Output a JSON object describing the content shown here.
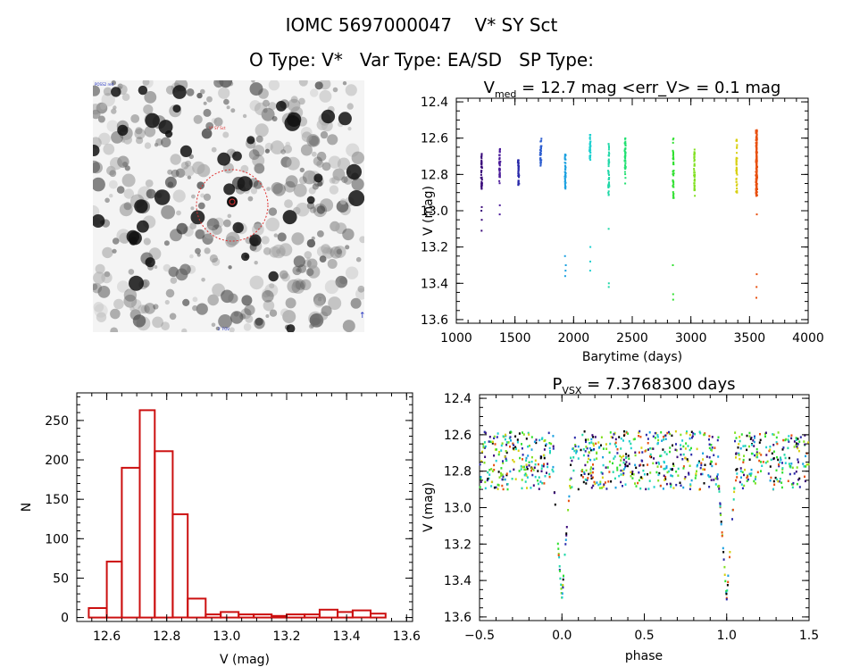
{
  "header": {
    "title": "IOMC 5697000047    V* SY Sct",
    "subtitle": "O Type: V*   Var Type: EA/SD   SP Type:"
  },
  "image_panel": {
    "label_top_left": "POSS2 red",
    "label_marker": "V* SY Sct",
    "label_bottom": "2' FOV",
    "circle_color": "#e03030"
  },
  "chart_data": [
    {
      "id": "light-curve",
      "type": "scatter",
      "title_main": "V",
      "title_sub": "med",
      "title_rest": " = 12.7 mag <err_V> = 0.1 mag",
      "xlabel": "Barytime (days)",
      "ylabel": "V (mag)",
      "xlim": [
        1000,
        4000
      ],
      "ylim": [
        13.62,
        12.38
      ],
      "y_inverted": true,
      "xticks": [
        1000,
        1500,
        2000,
        2500,
        3000,
        3500,
        4000
      ],
      "xtick_labels": [
        "1000",
        "1500",
        "2000",
        "2500",
        "3000",
        "3500",
        "4000"
      ],
      "yticks": [
        12.4,
        12.6,
        12.8,
        13.0,
        13.2,
        13.4,
        13.6
      ],
      "ytick_labels": [
        "12.4",
        "12.6",
        "12.8",
        "13.0",
        "13.2",
        "13.4",
        "13.6"
      ],
      "groups": [
        {
          "x": 1215,
          "color": "#3a0a7a",
          "main": [
            12.68,
            12.88
          ],
          "dips": [
            12.98,
            13.0,
            13.05,
            13.11
          ]
        },
        {
          "x": 1370,
          "color": "#4a1a9a",
          "main": [
            12.66,
            12.85
          ],
          "dips": [
            12.97,
            13.02
          ]
        },
        {
          "x": 1530,
          "color": "#2a2aaa",
          "main": [
            12.72,
            12.86
          ],
          "dips": []
        },
        {
          "x": 1720,
          "color": "#2f5fd0",
          "main": [
            12.6,
            12.76
          ],
          "dips": []
        },
        {
          "x": 1930,
          "color": "#1aa0e0",
          "main": [
            12.68,
            12.88
          ],
          "dips": [
            13.25,
            13.3,
            13.33,
            13.36
          ]
        },
        {
          "x": 2140,
          "color": "#20d0d0",
          "main": [
            12.58,
            12.72
          ],
          "dips": [
            13.2,
            13.28,
            13.33
          ]
        },
        {
          "x": 2300,
          "color": "#20d8a8",
          "main": [
            12.62,
            12.92
          ],
          "dips": [
            13.1,
            13.4,
            13.42
          ]
        },
        {
          "x": 2440,
          "color": "#20e070",
          "main": [
            12.6,
            12.85
          ],
          "dips": []
        },
        {
          "x": 2850,
          "color": "#30e030",
          "main": [
            12.6,
            12.93
          ],
          "dips": [
            13.3,
            13.46,
            13.49
          ]
        },
        {
          "x": 3030,
          "color": "#80e020",
          "main": [
            12.66,
            12.92
          ],
          "dips": []
        },
        {
          "x": 3390,
          "color": "#d8d010",
          "main": [
            12.6,
            12.9
          ],
          "dips": []
        },
        {
          "x": 3560,
          "color": "#e85010",
          "main": [
            12.55,
            12.92
          ],
          "dips": [
            13.02,
            13.35,
            13.42,
            13.48
          ]
        }
      ]
    },
    {
      "id": "histogram",
      "type": "bar",
      "xlabel": "V (mag)",
      "ylabel": "N",
      "xlim": [
        12.5,
        13.62
      ],
      "ylim": [
        -5,
        285
      ],
      "bar_color": "#cc1010",
      "bin_edges": [
        12.54,
        12.6,
        12.65,
        12.71,
        12.76,
        12.82,
        12.87,
        12.93,
        12.98,
        13.04,
        13.09,
        13.15,
        13.2,
        13.26,
        13.31,
        13.37,
        13.42,
        13.48,
        13.53
      ],
      "values": [
        12,
        71,
        190,
        263,
        211,
        131,
        24,
        4,
        7,
        4,
        4,
        2,
        4,
        4,
        10,
        7,
        9,
        5
      ],
      "xticks": [
        12.6,
        12.8,
        13.0,
        13.2,
        13.4,
        13.6
      ],
      "xtick_labels": [
        "12.6",
        "12.8",
        "13.0",
        "13.2",
        "13.4",
        "13.6"
      ],
      "yticks": [
        0,
        50,
        100,
        150,
        200,
        250
      ],
      "ytick_labels": [
        "0",
        "50",
        "100",
        "150",
        "200",
        "250"
      ]
    },
    {
      "id": "phased",
      "type": "scatter",
      "title_main": "P",
      "title_sub": "VSX",
      "title_rest": " = 7.3768300 days",
      "xlabel": "phase",
      "ylabel": "V (mag)",
      "xlim": [
        -0.5,
        1.5
      ],
      "ylim": [
        13.62,
        12.38
      ],
      "y_inverted": true,
      "period_days": 7.37683,
      "eclipse_phases": [
        0.0,
        1.0
      ],
      "baseline_range": [
        12.58,
        12.9
      ],
      "eclipse_depth": 13.5,
      "xticks": [
        -0.5,
        0.0,
        0.5,
        1.0,
        1.5
      ],
      "xtick_labels": [
        "−0.5",
        "0.0",
        "0.5",
        "1.0",
        "1.5"
      ],
      "yticks": [
        12.4,
        12.6,
        12.8,
        13.0,
        13.2,
        13.4,
        13.6
      ],
      "ytick_labels": [
        "12.4",
        "12.6",
        "12.8",
        "13.0",
        "13.2",
        "13.4",
        "13.6"
      ],
      "colors": [
        "#3a0a7a",
        "#2a2aaa",
        "#1aa0e0",
        "#20d0d0",
        "#20d8a8",
        "#30e030",
        "#80e020",
        "#d8d010",
        "#e85010",
        "#000000"
      ]
    }
  ]
}
